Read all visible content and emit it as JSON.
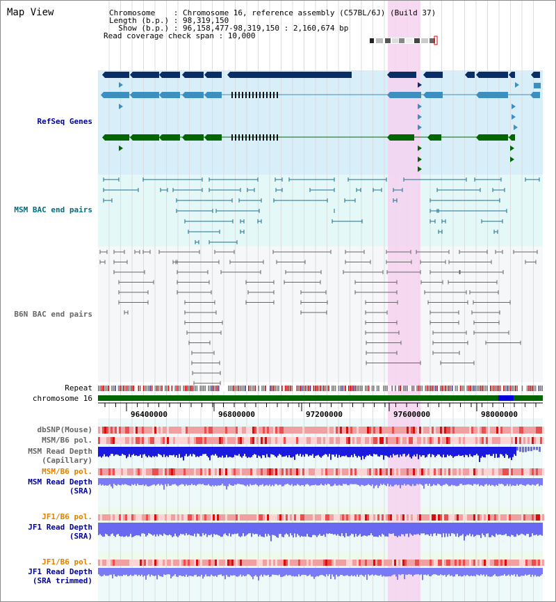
{
  "view_title": "Map View",
  "info": {
    "chromosome": "Chromosome    : Chromosome 16, reference assembly (C57BL/6J) (Build 37)",
    "length": "Length (b.p.) : 98,319,150",
    "show": "  Show (b.p.) : 96,158,477-98,319,150 : 2,160,674 bp",
    "coverage": "Read coverage check span : 10,000"
  },
  "tracks": {
    "refseq": "RefSeq Genes",
    "msm_bac": "MSM BAC end pairs",
    "b6n_bac": "B6N BAC end pairs",
    "repeat": "Repeat",
    "chromosome": "chromosome 16",
    "dbsnp": "dbSNP(Mouse)",
    "msm_b6_pol_1": "MSM/B6 pol.",
    "msm_depth_cap_1": "MSM Read Depth",
    "msm_depth_cap_2": "(Capillary)",
    "msm_b6_pol_2": "MSM/B6 pol.",
    "msm_depth_sra_1": "MSM Read Depth",
    "msm_depth_sra_2": "(SRA)",
    "jf1_b6_pol_1": "JF1/B6 pol.",
    "jf1_depth_sra_1": "JF1 Read Depth",
    "jf1_depth_sra_2": "(SRA)",
    "jf1_b6_pol_2": "JF1/B6 pol.",
    "jf1_depth_trim_1": "JF1 Read Depth",
    "jf1_depth_trim_2": "(SRA trimmed)"
  },
  "axis": {
    "ticks": [
      "96400000",
      "96800000",
      "97200000",
      "97600000",
      "98000000"
    ]
  },
  "colors": {
    "refseq_dark": "#0b2d66",
    "refseq_mid": "#3d8fbf",
    "refseq_green": "#006600",
    "msm_bac": "#1a6e8f",
    "b6n_bac": "#666666",
    "highlight": "#f6d2f0",
    "label_blue": "#00009b",
    "label_teal": "#006c80",
    "label_orange": "#e08000",
    "label_gray": "#666666"
  }
}
